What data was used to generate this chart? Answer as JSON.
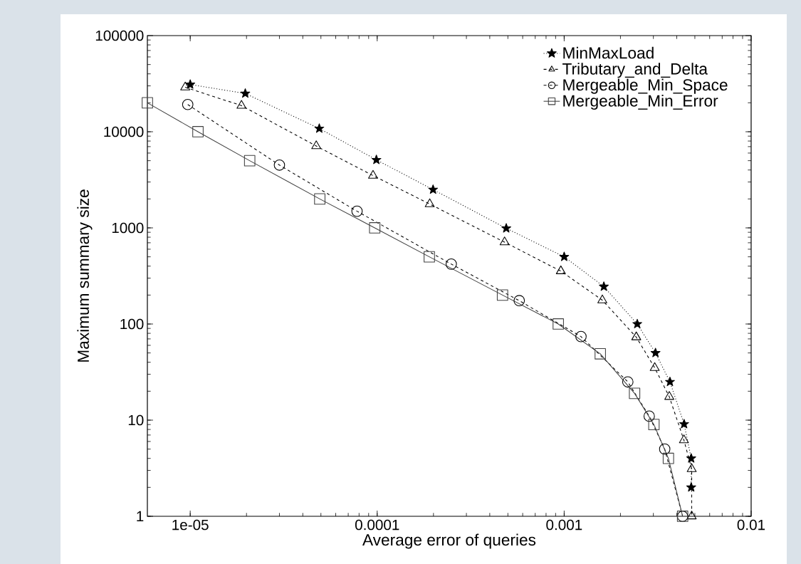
{
  "chart_data": {
    "type": "line",
    "xlabel": "Average error of queries",
    "ylabel": "Maximum summary size",
    "log": "xy",
    "xlim": [
      5.9e-06,
      0.01
    ],
    "ylim": [
      1,
      100000
    ],
    "xticks": [
      {
        "value": 1e-05,
        "label": "1e-05"
      },
      0.0001,
      0.001,
      0.01
    ],
    "yticks": [
      1,
      10,
      100,
      1000,
      10000,
      100000
    ],
    "legend": "top right",
    "series": [
      {
        "name": "MinMaxLoad",
        "color": "#000000",
        "marker": "star",
        "line_style": "dotted",
        "x": [
          1e-05,
          1.97e-05,
          4.9e-05,
          9.9e-05,
          0.000199,
          0.00049,
          0.001,
          0.00163,
          0.00246,
          0.00308,
          0.00368,
          0.00438,
          0.00478,
          0.00478
        ],
        "values": [
          31000,
          25000,
          10800,
          5100,
          2500,
          990,
          500,
          245,
          100,
          50,
          25,
          9.1,
          4,
          2
        ]
      },
      {
        "name": "Tributary_and_Delta",
        "color": "#000000",
        "marker": "triangle",
        "line_style": "dashed",
        "x": [
          9.4e-06,
          1.88e-05,
          4.72e-05,
          9.5e-05,
          0.000191,
          0.00048,
          0.00096,
          0.0016,
          0.00243,
          0.00305,
          0.00365,
          0.00437,
          0.00481,
          0.00481
        ],
        "values": [
          29000,
          18700,
          7100,
          3500,
          1770,
          710,
          355,
          177,
          73,
          35,
          17.5,
          6.2,
          3.1,
          1
        ]
      },
      {
        "name": "Mergeable_Min_Space",
        "color": "#000000",
        "marker": "circle",
        "line_style": "dashed",
        "x": [
          9.7e-06,
          3e-05,
          7.8e-05,
          0.000249,
          0.000575,
          0.00123,
          0.00219,
          0.00285,
          0.00345,
          0.0043
        ],
        "values": [
          19200,
          4500,
          1490,
          420,
          175,
          74,
          25,
          11,
          5,
          1
        ]
      },
      {
        "name": "Mergeable_Min_Error",
        "color": "#404040",
        "marker": "square",
        "line_style": "solid",
        "x": [
          5.9e-06,
          1.1e-05,
          2.08e-05,
          4.93e-05,
          9.7e-05,
          0.00019,
          0.000468,
          0.00093,
          0.00156,
          0.00238,
          0.00302,
          0.00361,
          0.0043
        ],
        "values": [
          20000,
          10000,
          5000,
          2000,
          1000,
          500,
          200,
          100,
          49,
          19,
          9,
          4,
          1
        ]
      }
    ]
  }
}
